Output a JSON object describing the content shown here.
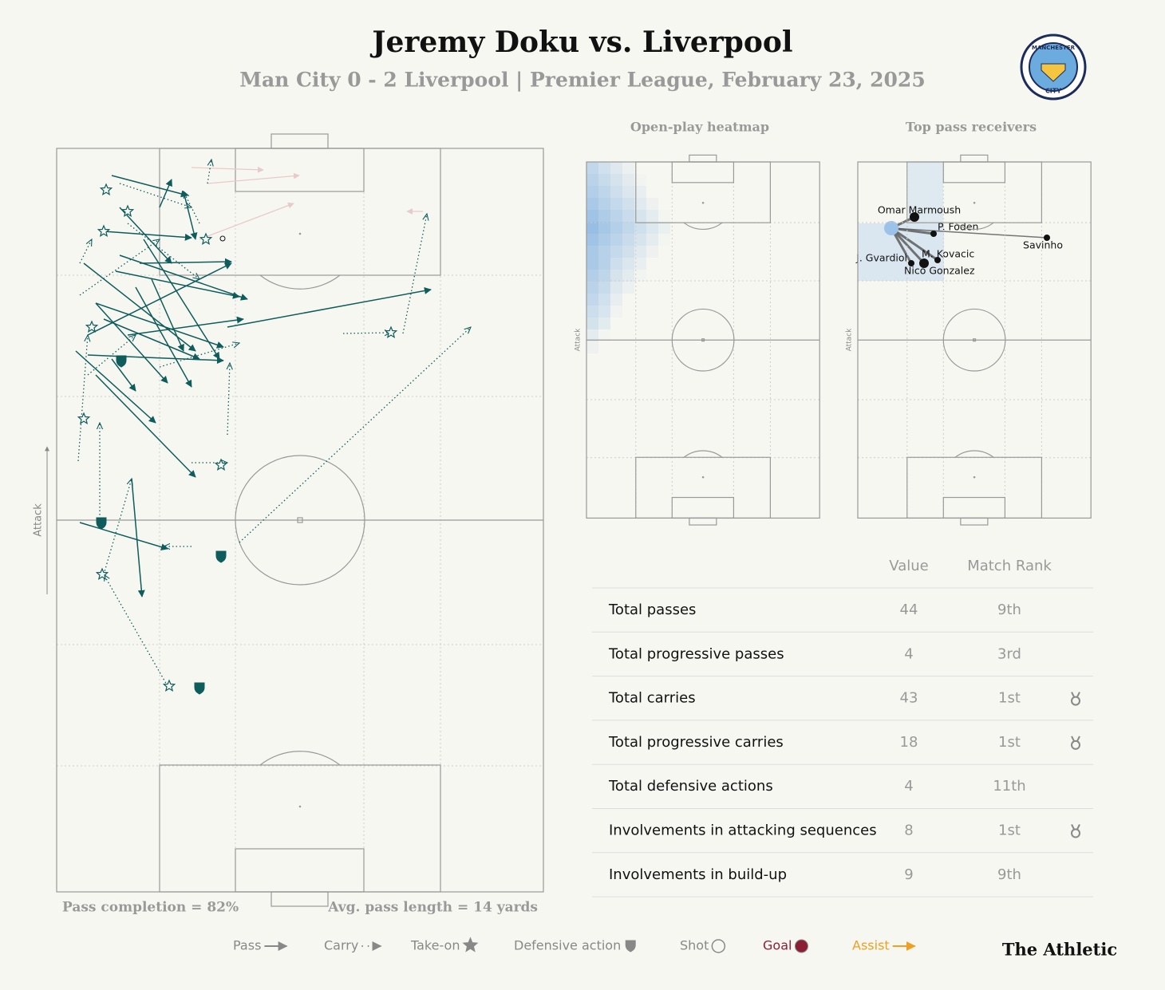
{
  "header": {
    "title": "Jeremy Doku vs. Liverpool",
    "subtitle": "Man City 0 - 2 Liverpool | Premier League, February 23, 2025",
    "badge_top": "MANCHESTER",
    "badge_bottom": "CITY"
  },
  "pitch": {
    "attack_label": "Attack",
    "pass_completion": "Pass completion = 82%",
    "avg_pass_length": "Avg. pass length = 14 yards"
  },
  "heatmap": {
    "title": "Open-play heatmap",
    "attack_label": "Attack"
  },
  "receivers": {
    "title": "Top pass receivers",
    "attack_label": "Attack",
    "players": [
      "Omar Marmoush",
      "P. Foden",
      "Savinho",
      "J. Gvardiol",
      "M. Kovacic",
      "Nico Gonzalez"
    ]
  },
  "table": {
    "columns": [
      "Value",
      "Match Rank"
    ],
    "rows": [
      [
        "Total passes",
        44,
        "9th"
      ],
      [
        "Total progressive passes",
        4,
        "3rd"
      ],
      [
        "Total carries",
        43,
        "1st"
      ],
      [
        "Total progressive carries",
        18,
        "1st"
      ],
      [
        "Total defensive actions",
        4,
        "11th"
      ],
      [
        "Involvements in attacking sequences",
        8,
        "1st"
      ],
      [
        "Involvements in build-up",
        9,
        "9th"
      ]
    ]
  },
  "legend": [
    "Pass",
    "Carry",
    "Take-on",
    "Defensive action",
    "Shot",
    "Goal",
    "Assist"
  ],
  "brand": "The Athletic"
}
